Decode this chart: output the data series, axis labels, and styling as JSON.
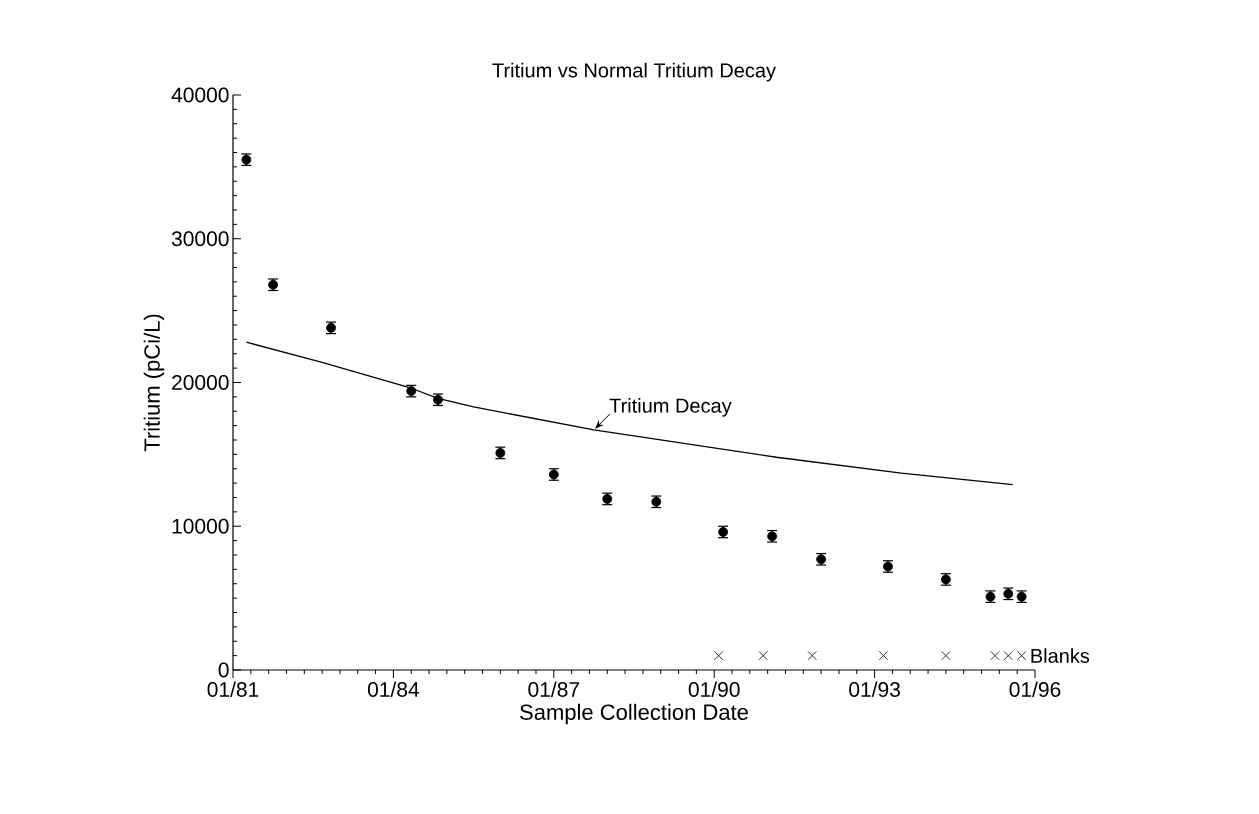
{
  "chart_data": {
    "type": "scatter",
    "title": "Tritium vs Normal Tritium Decay",
    "xlabel": "Sample Collection Date",
    "ylabel": "Tritium (pCi/L)",
    "xlim": [
      "1981-01",
      "1996-01"
    ],
    "xticks": [
      {
        "value": "1981-01",
        "label": "01/81"
      },
      {
        "value": "1984-01",
        "label": "01/84"
      },
      {
        "value": "1987-01",
        "label": "01/87"
      },
      {
        "value": "1990-01",
        "label": "01/90"
      },
      {
        "value": "1993-01",
        "label": "01/93"
      },
      {
        "value": "1996-01",
        "label": "01/96"
      }
    ],
    "ylim": [
      0,
      40000
    ],
    "yticks": [
      0,
      10000,
      20000,
      30000,
      40000
    ],
    "grid": false,
    "legend": false,
    "series": [
      {
        "color": "#000000",
        "marker": "circle",
        "x": [
          "1981-04",
          "1981-10",
          "1982-11",
          "1984-05",
          "1984-11",
          "1986-01",
          "1987-01",
          "1988-01",
          "1988-12",
          "1990-03",
          "1991-02",
          "1992-01",
          "1993-04",
          "1994-05",
          "1995-03",
          "1995-07",
          "1995-10"
        ],
        "values": [
          35500,
          26800,
          23800,
          19400,
          18800,
          15100,
          13600,
          11900,
          11700,
          9600,
          9300,
          7700,
          7200,
          6300,
          5100,
          5300,
          5100
        ],
        "errors": [
          400,
          400,
          400,
          400,
          400,
          400,
          400,
          400,
          400,
          400,
          400,
          400,
          400,
          400,
          400,
          400,
          400
        ]
      },
      {
        "type": "line",
        "color": "#000000",
        "marker": "none",
        "line_style": "solid",
        "x": [
          "1981-04",
          "1982-09",
          "1984-05",
          "1984-11",
          "1985-07",
          "1987-10",
          "1991-03",
          "1993-07",
          "1995-08"
        ],
        "values": [
          22800,
          21400,
          19600,
          18900,
          18300,
          16700,
          14800,
          13700,
          12900
        ]
      },
      {
        "name": "Blanks",
        "color": "#000000",
        "marker": "cross",
        "x": [
          "1990-02",
          "1990-12",
          "1991-11",
          "1993-03",
          "1994-05",
          "1995-04",
          "1995-07",
          "1995-10"
        ],
        "values": [
          1000,
          1000,
          1000,
          1000,
          1000,
          1000,
          1000,
          1000
        ]
      }
    ],
    "annotations": [
      {
        "text": "Tritium Decay",
        "x": "1987-10",
        "y": 16700
      }
    ]
  }
}
